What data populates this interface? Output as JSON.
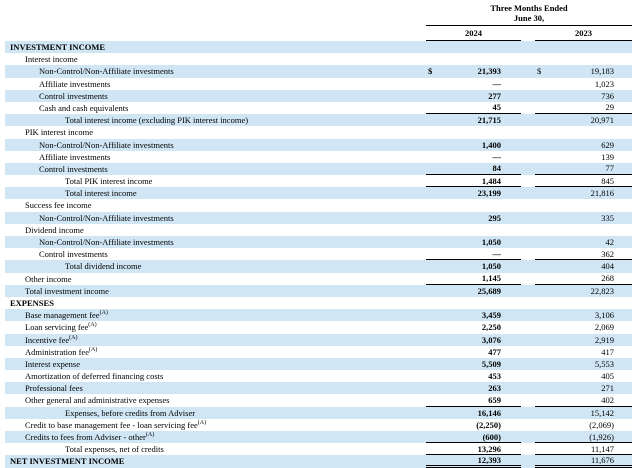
{
  "header": {
    "period_line1": "Three Months Ended",
    "period_line2": "June 30,",
    "year_left": "2024",
    "year_right": "2023"
  },
  "colors": {
    "row_shade": "#d0e6f5",
    "rule": "#000000"
  },
  "rows": [
    {
      "label": "INVESTMENT INCOME",
      "indent": 0,
      "bold": true,
      "shaded": true
    },
    {
      "label": "Interest income",
      "indent": 1
    },
    {
      "label": "Non-Control/Non-Affiliate investments",
      "indent": 2,
      "shaded": true,
      "dollar": true,
      "v2024": "21,393",
      "v2023": "19,183"
    },
    {
      "label": "Affiliate investments",
      "indent": 2,
      "v2024": "—",
      "v2023": "1,023"
    },
    {
      "label": "Control investments",
      "indent": 2,
      "shaded": true,
      "v2024": "277",
      "v2023": "736"
    },
    {
      "label": "Cash and cash equivalents",
      "indent": 2,
      "v2024": "45",
      "v2023": "29",
      "border": "single"
    },
    {
      "label": "Total interest income (excluding PIK interest income)",
      "indent": 3,
      "shaded": true,
      "v2024": "21,715",
      "v2023": "20,971"
    },
    {
      "label": "PIK interest income",
      "indent": 1
    },
    {
      "label": "Non-Control/Non-Affiliate investments",
      "indent": 2,
      "shaded": true,
      "v2024": "1,400",
      "v2023": "629"
    },
    {
      "label": "Affiliate investments",
      "indent": 2,
      "v2024": "—",
      "v2023": "139"
    },
    {
      "label": "Control investments",
      "indent": 2,
      "shaded": true,
      "v2024": "84",
      "v2023": "77",
      "border": "single"
    },
    {
      "label": "Total PIK interest income",
      "indent": 3,
      "v2024": "1,484",
      "v2023": "845",
      "border": "single"
    },
    {
      "label": "Total interest income",
      "indent": 3,
      "shaded": true,
      "v2024": "23,199",
      "v2023": "21,816"
    },
    {
      "label": "Success fee income",
      "indent": 1
    },
    {
      "label": "Non-Control/Non-Affiliate investments",
      "indent": 2,
      "shaded": true,
      "v2024": "295",
      "v2023": "335"
    },
    {
      "label": "Dividend income",
      "indent": 1
    },
    {
      "label": "Non-Control/Non-Affiliate investments",
      "indent": 2,
      "shaded": true,
      "v2024": "1,050",
      "v2023": "42"
    },
    {
      "label": "Control investments",
      "indent": 2,
      "v2024": "—",
      "v2023": "362",
      "border": "single"
    },
    {
      "label": "Total dividend income",
      "indent": 3,
      "shaded": true,
      "v2024": "1,050",
      "v2023": "404"
    },
    {
      "label": "Other income",
      "indent": 1,
      "v2024": "1,145",
      "v2023": "268",
      "border": "single"
    },
    {
      "label": "Total investment income",
      "indent": 1,
      "shaded": true,
      "v2024": "25,689",
      "v2023": "22,823"
    },
    {
      "label": "EXPENSES",
      "indent": 0,
      "bold": true
    },
    {
      "label": "Base management fee",
      "sup": "(A)",
      "indent": 1,
      "shaded": true,
      "v2024": "3,459",
      "v2023": "3,106"
    },
    {
      "label": "Loan servicing fee",
      "sup": "(A)",
      "indent": 1,
      "v2024": "2,250",
      "v2023": "2,069"
    },
    {
      "label": "Incentive fee",
      "sup": "(A)",
      "indent": 1,
      "shaded": true,
      "v2024": "3,076",
      "v2023": "2,919"
    },
    {
      "label": "Administration fee",
      "sup": "(A)",
      "indent": 1,
      "v2024": "477",
      "v2023": "417"
    },
    {
      "label": "Interest expense",
      "indent": 1,
      "shaded": true,
      "v2024": "5,509",
      "v2023": "5,553"
    },
    {
      "label": "Amortization of deferred financing costs",
      "indent": 1,
      "v2024": "453",
      "v2023": "405"
    },
    {
      "label": "Professional fees",
      "indent": 1,
      "shaded": true,
      "v2024": "263",
      "v2023": "271"
    },
    {
      "label": "Other general and administrative expenses",
      "indent": 1,
      "v2024": "659",
      "v2023": "402",
      "border": "single"
    },
    {
      "label": "Expenses, before credits from Adviser",
      "indent": 3,
      "shaded": true,
      "v2024": "16,146",
      "v2023": "15,142"
    },
    {
      "label": "Credit to base management fee - loan servicing fee",
      "sup": "(A)",
      "indent": 1,
      "v2024": "(2,250)",
      "v2023": "(2,069)"
    },
    {
      "label": "Credits to fees from Adviser - other",
      "sup": "(A)",
      "indent": 1,
      "shaded": true,
      "v2024": "(600)",
      "v2023": "(1,926)",
      "border": "single"
    },
    {
      "label": "Total expenses, net of credits",
      "indent": 3,
      "v2024": "13,296",
      "v2023": "11,147",
      "border": "single"
    },
    {
      "label": "NET INVESTMENT INCOME",
      "indent": 0,
      "bold": true,
      "shaded": true,
      "v2024": "12,393",
      "v2023": "11,676",
      "border": "double"
    }
  ]
}
